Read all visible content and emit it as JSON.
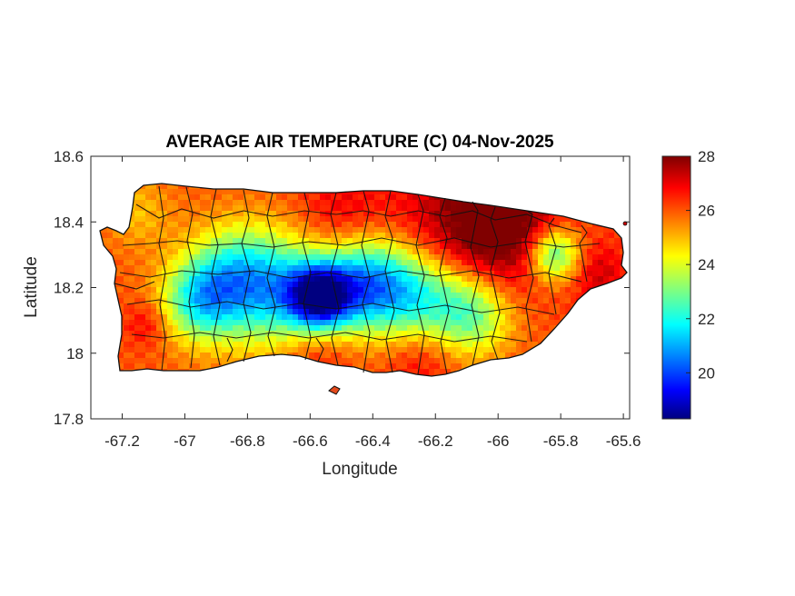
{
  "chart_data": {
    "type": "heatmap",
    "title": "AVERAGE AIR TEMPERATURE (C) 04-Nov-2025",
    "xlabel": "Longitude",
    "ylabel": "Latitude",
    "xlim": [
      -67.3,
      -65.58
    ],
    "ylim": [
      17.8,
      18.6
    ],
    "xticks": [
      -67.2,
      -67,
      -66.8,
      -66.6,
      -66.4,
      -66.2,
      -66,
      -65.8,
      -65.6
    ],
    "xtick_labels": [
      "-67.2",
      "-67",
      "-66.8",
      "-66.6",
      "-66.4",
      "-66.2",
      "-66",
      "-65.8",
      "-65.6"
    ],
    "yticks": [
      17.8,
      18,
      18.2,
      18.4,
      18.6
    ],
    "ytick_labels": [
      "17.8",
      "18",
      "18.2",
      "18.4",
      "18.6"
    ],
    "colorbar": {
      "range": [
        18.3,
        28
      ],
      "ticks": [
        20,
        22,
        24,
        26,
        28
      ],
      "tick_labels": [
        "20",
        "22",
        "24",
        "26",
        "28"
      ],
      "colormap": "jet"
    },
    "grid": false,
    "field": {
      "description_units": "degrees C",
      "background": 26.0,
      "features": [
        {
          "lon": -66.57,
          "lat": 18.17,
          "value": 19.5,
          "spread": 0.07
        },
        {
          "lon": -66.42,
          "lat": 18.21,
          "value": 21.2,
          "spread": 0.1
        },
        {
          "lon": -66.72,
          "lat": 18.19,
          "value": 22.0,
          "spread": 0.12
        },
        {
          "lon": -66.95,
          "lat": 18.16,
          "value": 22.3,
          "spread": 0.09
        },
        {
          "lon": -66.25,
          "lat": 18.17,
          "value": 22.8,
          "spread": 0.1
        },
        {
          "lon": -66.08,
          "lat": 18.12,
          "value": 23.0,
          "spread": 0.09
        },
        {
          "lon": -65.82,
          "lat": 18.3,
          "value": 22.2,
          "spread": 0.06
        },
        {
          "lon": -66.85,
          "lat": 18.26,
          "value": 24.0,
          "spread": 0.1
        },
        {
          "lon": -66.1,
          "lat": 18.4,
          "value": 27.8,
          "spread": 0.16
        },
        {
          "lon": -65.95,
          "lat": 18.38,
          "value": 27.6,
          "spread": 0.12
        },
        {
          "lon": -66.5,
          "lat": 18.42,
          "value": 27.0,
          "spread": 0.1
        },
        {
          "lon": -66.58,
          "lat": 18.02,
          "value": 27.0,
          "spread": 0.08
        },
        {
          "lon": -66.25,
          "lat": 17.99,
          "value": 27.0,
          "spread": 0.08
        },
        {
          "lon": -65.68,
          "lat": 18.24,
          "value": 27.2,
          "spread": 0.07
        },
        {
          "lon": -67.12,
          "lat": 18.09,
          "value": 27.0,
          "spread": 0.05
        },
        {
          "lon": -67.15,
          "lat": 18.43,
          "value": 25.0,
          "spread": 0.08
        }
      ]
    }
  }
}
